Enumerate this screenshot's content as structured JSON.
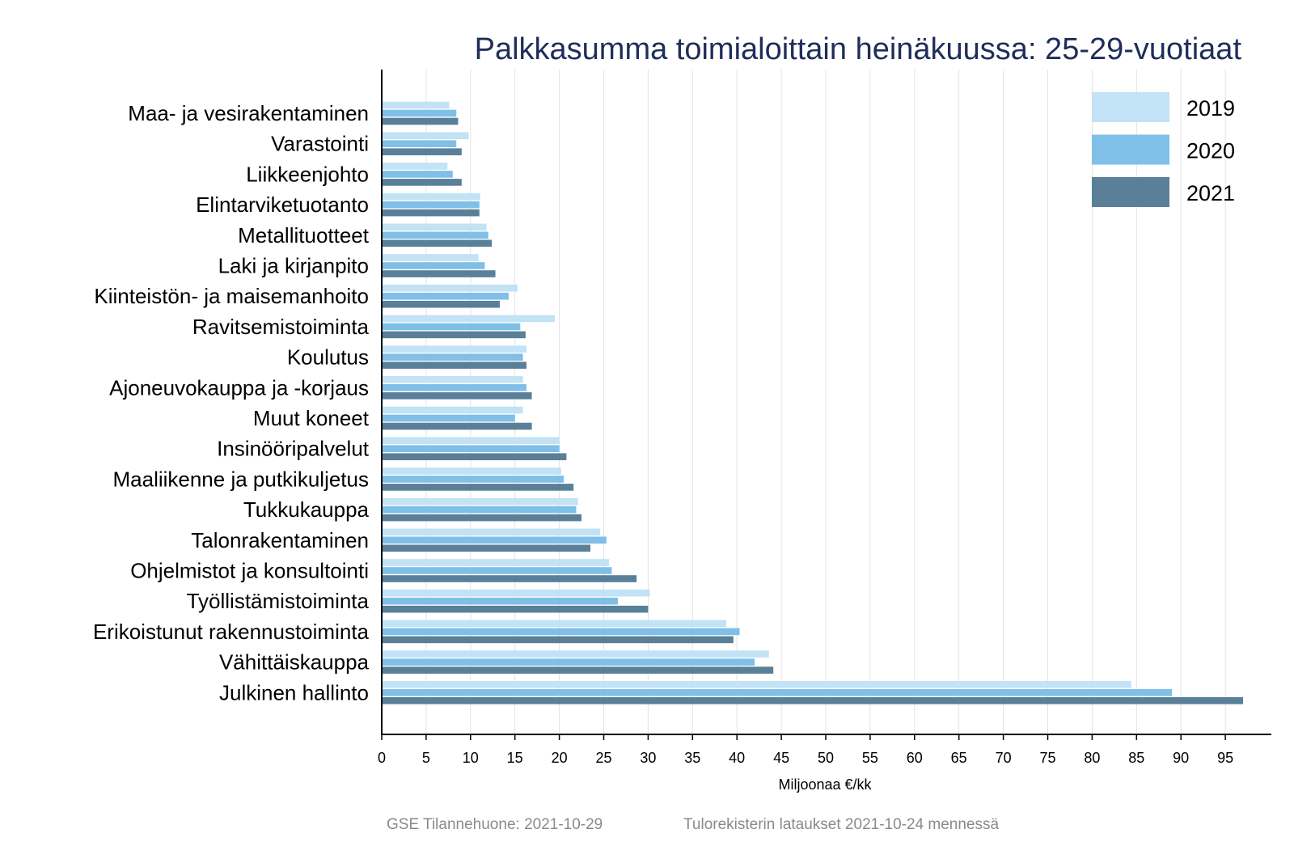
{
  "colors": {
    "s2019": "#c2e2f5",
    "s2020": "#7fbfe8",
    "s2021": "#5a7f99",
    "title": "#1f2d5a",
    "grid": "#e3e3e3",
    "footer": "#8a8a8a"
  },
  "footer": {
    "left": "GSE Tilannehuone: 2021-10-29",
    "right": "Tulorekisterin lataukset 2021-10-24 mennessä"
  },
  "chart_data": {
    "type": "bar",
    "orientation": "horizontal",
    "title": "Palkkasumma toimialoittain heinäkuussa: 25-29-vuotiaat",
    "xlabel": "Miljoonaa €/kk",
    "ylabel": "",
    "xlim": [
      0,
      100
    ],
    "xticks": [
      0,
      5,
      10,
      15,
      20,
      25,
      30,
      35,
      40,
      45,
      50,
      55,
      60,
      65,
      70,
      75,
      80,
      85,
      90,
      95
    ],
    "grid": "vertical",
    "legend_position": "top-right",
    "categories": [
      "Maa- ja vesirakentaminen",
      "Varastointi",
      "Liikkeenjohto",
      "Elintarviketuotanto",
      "Metallituotteet",
      "Laki ja kirjanpito",
      "Kiinteistön- ja maisemanhoito",
      "Ravitsemistoiminta",
      "Koulutus",
      "Ajoneuvokauppa ja -korjaus",
      "Muut koneet",
      "Insinööripalvelut",
      "Maaliikenne ja putkikuljetus",
      "Tukkukauppa",
      "Talonrakentaminen",
      "Ohjelmistot ja konsultointi",
      "Työllistämistoiminta",
      "Erikoistunut rakennustoiminta",
      "Vähittäiskauppa",
      "Julkinen hallinto"
    ],
    "series": [
      {
        "name": "2019",
        "values": [
          7.6,
          9.8,
          7.4,
          11.1,
          11.8,
          10.9,
          15.3,
          19.5,
          16.3,
          15.9,
          15.9,
          20.0,
          20.2,
          22.1,
          24.6,
          25.6,
          30.2,
          38.8,
          43.6,
          84.4
        ]
      },
      {
        "name": "2020",
        "values": [
          8.4,
          8.4,
          8.0,
          11.0,
          12.0,
          11.6,
          14.3,
          15.6,
          15.9,
          16.3,
          15.0,
          20.0,
          20.5,
          21.9,
          25.3,
          25.9,
          26.6,
          40.3,
          42.0,
          89.0
        ]
      },
      {
        "name": "2021",
        "values": [
          8.6,
          9.0,
          9.0,
          11.0,
          12.4,
          12.8,
          13.3,
          16.2,
          16.3,
          16.9,
          16.9,
          20.8,
          21.6,
          22.5,
          23.5,
          28.7,
          30.0,
          39.6,
          44.1,
          97.0
        ]
      }
    ]
  }
}
